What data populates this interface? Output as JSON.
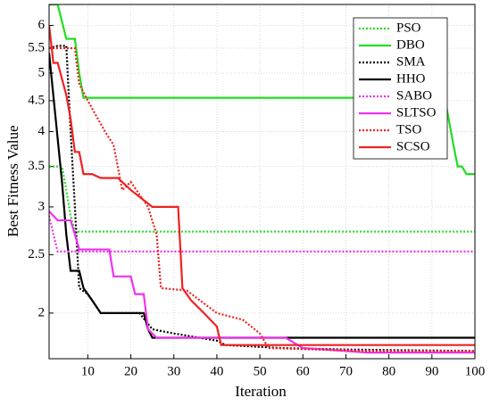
{
  "chart_data": {
    "type": "line",
    "x_label": "Iteration",
    "y_label": "Best Fitness Value",
    "xlim": [
      1,
      100
    ],
    "ylim": [
      1.68,
      6.5
    ],
    "log_y": true,
    "grid": true,
    "legend": "upper right",
    "xticks": [
      10,
      20,
      30,
      40,
      50,
      60,
      70,
      80,
      90,
      100
    ],
    "yticks": [
      2,
      2.5,
      3,
      3.5,
      4,
      4.5,
      5,
      5.5,
      6
    ],
    "series": [
      {
        "name": "PSO",
        "color": "#22dd22",
        "style": "dotted",
        "x": [
          1,
          4,
          5,
          6,
          7,
          100
        ],
        "values": [
          3.5,
          3.5,
          3.2,
          2.9,
          2.73,
          2.73
        ]
      },
      {
        "name": "DBO",
        "color": "#22dd22",
        "style": "solid",
        "x": [
          1,
          3,
          5,
          7,
          8,
          9,
          93,
          95,
          96,
          97,
          98,
          100
        ],
        "values": [
          6.5,
          6.5,
          5.7,
          5.7,
          5.0,
          4.55,
          4.55,
          3.8,
          3.5,
          3.5,
          3.4,
          3.4
        ]
      },
      {
        "name": "SMA",
        "color": "#000000",
        "style": "dotted",
        "x": [
          1,
          3,
          5,
          6,
          7,
          8,
          10,
          13,
          22,
          25,
          30,
          40,
          42,
          55,
          70,
          100
        ],
        "values": [
          5.5,
          5.55,
          5.55,
          4.0,
          3.0,
          2.2,
          2.15,
          2.0,
          2.0,
          1.88,
          1.85,
          1.8,
          1.77,
          1.75,
          1.74,
          1.73
        ]
      },
      {
        "name": "HHO",
        "color": "#000000",
        "style": "solid",
        "x": [
          1,
          4,
          5,
          6,
          8,
          9,
          11,
          13,
          23,
          24,
          25,
          40,
          100
        ],
        "values": [
          5.4,
          3.3,
          2.7,
          2.35,
          2.35,
          2.2,
          2.1,
          2.0,
          2.0,
          1.88,
          1.82,
          1.82,
          1.82
        ]
      },
      {
        "name": "SABO",
        "color": "#ee33ee",
        "style": "dotted",
        "x": [
          1,
          2,
          3,
          100
        ],
        "values": [
          2.9,
          2.7,
          2.53,
          2.53
        ]
      },
      {
        "name": "SLTSO",
        "color": "#ee33ee",
        "style": "solid",
        "x": [
          1,
          3,
          6,
          7,
          8,
          15,
          16,
          20,
          21,
          23,
          24,
          26,
          56,
          60,
          75,
          100
        ],
        "values": [
          2.95,
          2.85,
          2.85,
          2.7,
          2.55,
          2.55,
          2.3,
          2.3,
          2.15,
          2.15,
          1.88,
          1.82,
          1.82,
          1.75,
          1.72,
          1.72
        ]
      },
      {
        "name": "TSO",
        "color": "#ee2222",
        "style": "dotted",
        "x": [
          1,
          7,
          8,
          10,
          14,
          16,
          18,
          20,
          24,
          26,
          27,
          33,
          40,
          46,
          50,
          52,
          75,
          100
        ],
        "values": [
          5.5,
          5.5,
          4.8,
          4.5,
          4.0,
          3.8,
          3.2,
          3.3,
          3.0,
          2.7,
          2.2,
          2.18,
          2.0,
          1.95,
          1.85,
          1.75,
          1.73,
          1.73
        ]
      },
      {
        "name": "SCSO",
        "color": "#ee2222",
        "style": "solid",
        "x": [
          1,
          2,
          3,
          5,
          6,
          7,
          8,
          9,
          11,
          13,
          17,
          20,
          25,
          31,
          32,
          34,
          37,
          40,
          41,
          55,
          100
        ],
        "values": [
          6.0,
          5.2,
          5.2,
          4.6,
          4.2,
          3.7,
          3.7,
          3.4,
          3.4,
          3.35,
          3.35,
          3.2,
          3.0,
          3.0,
          2.2,
          2.1,
          2.0,
          1.9,
          1.77,
          1.77,
          1.77
        ]
      }
    ]
  }
}
